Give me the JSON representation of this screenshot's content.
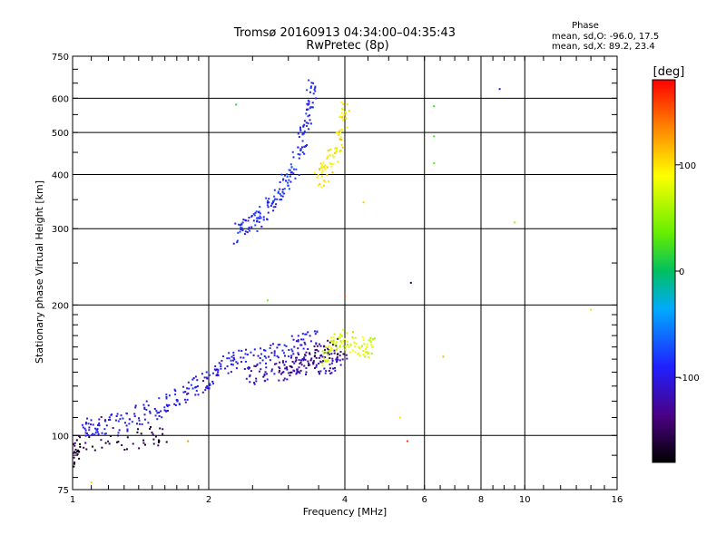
{
  "chart_data": {
    "type": "scatter",
    "title": "Tromsø 20160913 04:34:00–04:35:43",
    "subtitle": "RwPretec (8p)",
    "xlabel": "Frequency [MHz]",
    "ylabel": "Stationary phase Virtual Height [km]",
    "x_scale": "log",
    "y_scale": "log",
    "xlim": [
      1,
      16
    ],
    "ylim": [
      75,
      750
    ],
    "x_ticks": [
      {
        "value": 1,
        "label": "1"
      },
      {
        "value": 2,
        "label": "2"
      },
      {
        "value": 4,
        "label": "4"
      },
      {
        "value": 6,
        "label": "6"
      },
      {
        "value": 8,
        "label": "8"
      },
      {
        "value": 10,
        "label": "10"
      },
      {
        "value": 16,
        "label": "16"
      }
    ],
    "y_ticks": [
      {
        "value": 75,
        "label": "75"
      },
      {
        "value": 100,
        "label": "100"
      },
      {
        "value": 200,
        "label": "200"
      },
      {
        "value": 300,
        "label": "300"
      },
      {
        "value": 400,
        "label": "400"
      },
      {
        "value": 500,
        "label": "500"
      },
      {
        "value": 600,
        "label": "600"
      },
      {
        "value": 750,
        "label": "750"
      }
    ],
    "x_gridlines": [
      2,
      4,
      6,
      8,
      10
    ],
    "y_gridlines": [
      100,
      200,
      300,
      400,
      500,
      600
    ],
    "grid": true,
    "phase_stats": {
      "heading": "Phase",
      "line_o": "mean, sd,O: -96.0, 17.5",
      "line_x": "mean, sd,X:  89.2, 23.4"
    },
    "colorbar": {
      "unit_label": "[deg]",
      "range": [
        -180,
        180
      ],
      "ticks": [
        {
          "value": 100,
          "label": "100"
        },
        {
          "value": 0,
          "label": "0"
        },
        {
          "value": -100,
          "label": "-100"
        }
      ]
    },
    "traces": [
      {
        "phase": -100,
        "points": [
          [
            1.05,
            104
          ],
          [
            1.1,
            105
          ],
          [
            1.15,
            105
          ],
          [
            1.2,
            106
          ],
          [
            1.3,
            108
          ],
          [
            1.4,
            111
          ],
          [
            1.5,
            114
          ],
          [
            1.6,
            118
          ],
          [
            1.7,
            121
          ],
          [
            1.8,
            125
          ],
          [
            1.9,
            130
          ],
          [
            2.0,
            135
          ],
          [
            2.1,
            140
          ],
          [
            2.2,
            146
          ],
          [
            2.3,
            150
          ],
          [
            2.5,
            150
          ],
          [
            2.7,
            152
          ],
          [
            2.9,
            158
          ],
          [
            3.1,
            162
          ],
          [
            3.3,
            166
          ],
          [
            3.5,
            168
          ]
        ]
      },
      {
        "phase": -115,
        "points": [
          [
            2.4,
            135
          ],
          [
            2.6,
            138
          ],
          [
            2.8,
            140
          ],
          [
            3.0,
            142
          ],
          [
            3.2,
            145
          ],
          [
            3.4,
            145
          ],
          [
            3.6,
            146
          ],
          [
            3.8,
            147
          ],
          [
            4.0,
            150
          ]
        ]
      },
      {
        "phase": -140,
        "points": [
          [
            2.9,
            140
          ],
          [
            3.1,
            145
          ],
          [
            3.3,
            150
          ],
          [
            3.5,
            155
          ],
          [
            3.7,
            158
          ],
          [
            3.9,
            160
          ]
        ]
      },
      {
        "phase": -90,
        "points": [
          [
            2.3,
            290
          ],
          [
            2.4,
            300
          ],
          [
            2.5,
            310
          ],
          [
            2.6,
            320
          ],
          [
            2.7,
            335
          ],
          [
            2.8,
            350
          ],
          [
            2.9,
            370
          ],
          [
            3.0,
            395
          ],
          [
            3.1,
            420
          ],
          [
            3.2,
            460
          ],
          [
            3.25,
            500
          ],
          [
            3.3,
            550
          ],
          [
            3.35,
            600
          ],
          [
            3.4,
            640
          ]
        ]
      },
      {
        "phase": 95,
        "points": [
          [
            3.5,
            390
          ],
          [
            3.6,
            400
          ],
          [
            3.7,
            420
          ],
          [
            3.8,
            450
          ],
          [
            3.9,
            490
          ],
          [
            4.0,
            540
          ],
          [
            4.0,
            580
          ]
        ]
      },
      {
        "phase": 75,
        "points": [
          [
            3.6,
            150
          ],
          [
            3.7,
            158
          ],
          [
            3.8,
            162
          ],
          [
            3.9,
            170
          ],
          [
            4.1,
            165
          ],
          [
            4.3,
            160
          ],
          [
            4.5,
            158
          ],
          [
            4.6,
            162
          ]
        ]
      },
      {
        "phase": -160,
        "points": [
          [
            1.0,
            88
          ],
          [
            1.02,
            92
          ],
          [
            1.05,
            95
          ],
          [
            1.3,
            97
          ],
          [
            1.5,
            100
          ],
          [
            1.6,
            98
          ]
        ]
      }
    ],
    "outliers": [
      {
        "x": 2.3,
        "y": 580,
        "phase": 15
      },
      {
        "x": 6.3,
        "y": 575,
        "phase": 20
      },
      {
        "x": 6.3,
        "y": 490,
        "phase": 25
      },
      {
        "x": 6.3,
        "y": 425,
        "phase": 30
      },
      {
        "x": 8.8,
        "y": 630,
        "phase": -110
      },
      {
        "x": 9.5,
        "y": 310,
        "phase": 50
      },
      {
        "x": 14,
        "y": 195,
        "phase": 70
      },
      {
        "x": 5.6,
        "y": 225,
        "phase": -150
      },
      {
        "x": 4.4,
        "y": 345,
        "phase": 110
      },
      {
        "x": 5.3,
        "y": 110,
        "phase": 100
      },
      {
        "x": 6.6,
        "y": 152,
        "phase": 120
      },
      {
        "x": 4.0,
        "y": 210,
        "phase": 150
      },
      {
        "x": 1.8,
        "y": 97,
        "phase": 130
      },
      {
        "x": 1.1,
        "y": 78,
        "phase": 105
      },
      {
        "x": 2.7,
        "y": 205,
        "phase": 40
      },
      {
        "x": 5.5,
        "y": 97,
        "phase": 160
      }
    ]
  }
}
